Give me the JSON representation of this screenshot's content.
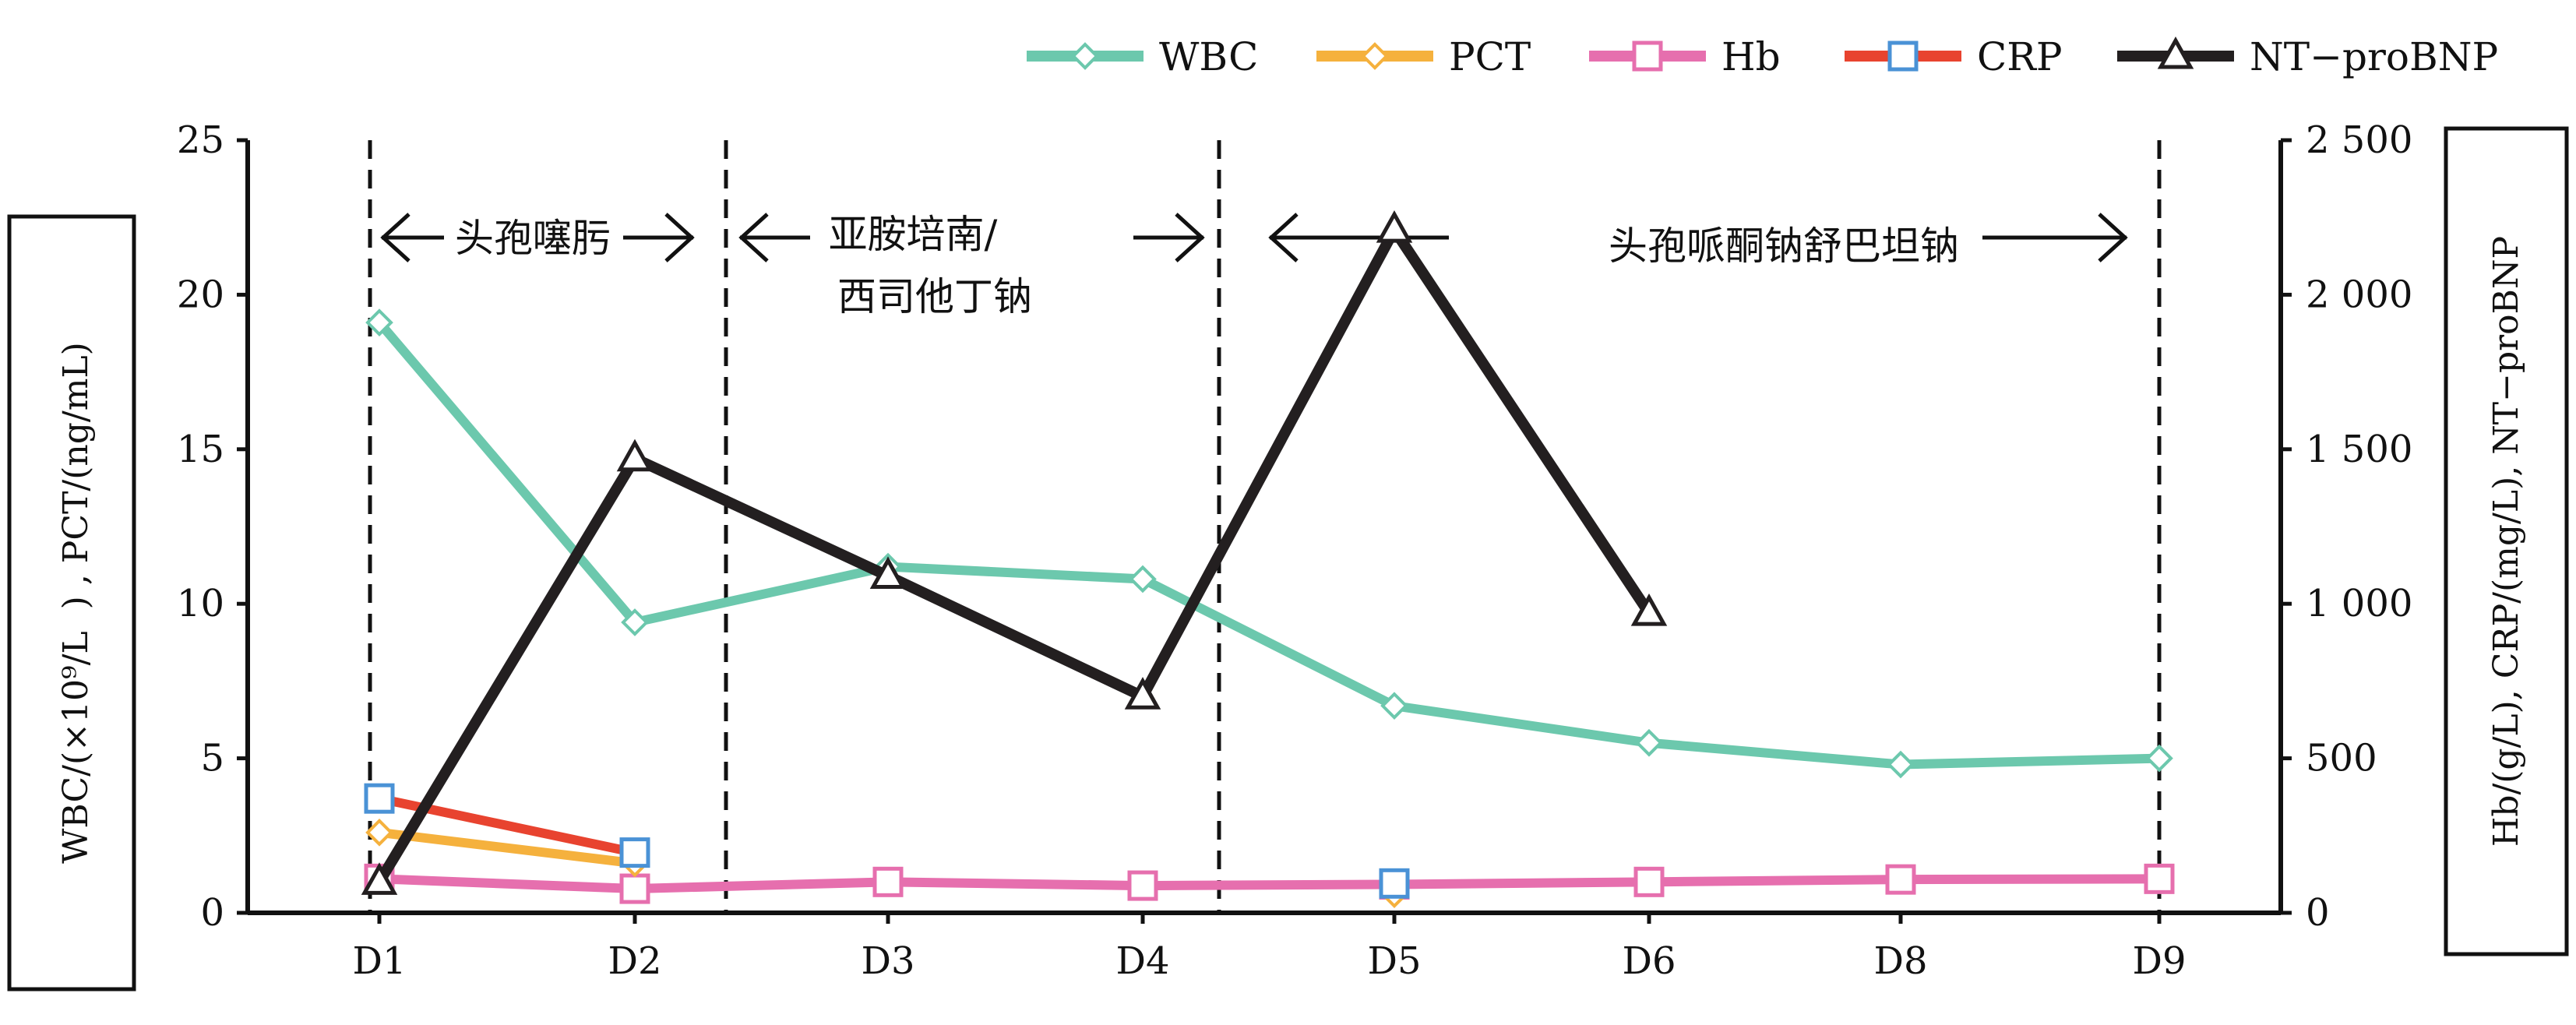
{
  "chart_data": {
    "type": "line",
    "categories": [
      "D1",
      "D2",
      "D3",
      "D4",
      "D5",
      "D6",
      "D8",
      "D9"
    ],
    "y_left": {
      "label": "WBC/(×10⁹/L  ) , PCT/(ng/mL)",
      "range": [
        0,
        25
      ],
      "ticks": [
        "0",
        "5",
        "10",
        "15",
        "20",
        "25"
      ],
      "tick_values": [
        0,
        5,
        10,
        15,
        20,
        25
      ]
    },
    "y_right": {
      "label": "Hb/(g/L), CRP/(mg/L), NT−proBNP",
      "range": [
        0,
        2500
      ],
      "ticks": [
        "0",
        "500",
        "1 000",
        "1 500",
        "2 000",
        "2 500"
      ],
      "tick_values": [
        0,
        500,
        1000,
        1500,
        2000,
        2500
      ]
    },
    "series": [
      {
        "name": "WBC",
        "axis": "left",
        "color": "#6cc8ad",
        "marker": "diamond",
        "values": [
          19.1,
          9.4,
          11.2,
          10.8,
          6.7,
          5.5,
          4.8,
          5.0
        ]
      },
      {
        "name": "PCT",
        "axis": "left",
        "color": "#f5b13d",
        "marker": "diamond",
        "values": [
          2.6,
          1.6,
          null,
          null,
          0.6,
          null,
          null,
          null
        ]
      },
      {
        "name": "Hb",
        "axis": "right",
        "color": "#e66fae",
        "marker": "square",
        "values": [
          110,
          78,
          100,
          88,
          92,
          100,
          108,
          110
        ]
      },
      {
        "name": "CRP",
        "axis": "right",
        "color": "#e8432f",
        "marker": "square",
        "marker_color": "#4a92d6",
        "values": [
          370,
          195,
          null,
          null,
          95,
          null,
          null,
          null
        ]
      },
      {
        "name": "NT−proBNP",
        "axis": "right",
        "color": "#231f20",
        "marker": "triangle",
        "values": [
          100,
          1470,
          1090,
          700,
          2210,
          970,
          null,
          null
        ]
      }
    ],
    "legend_position": "top-right",
    "grid": false,
    "annotations": [
      {
        "text": "头孢噻肟"
      },
      {
        "text_line1": "亚胺培南/",
        "text_line2": "西司他丁钠"
      },
      {
        "text": "头孢哌酮钠舒巴坦钠"
      }
    ],
    "dividers_after": [
      "D1",
      "D2",
      "D4",
      "D9"
    ]
  }
}
